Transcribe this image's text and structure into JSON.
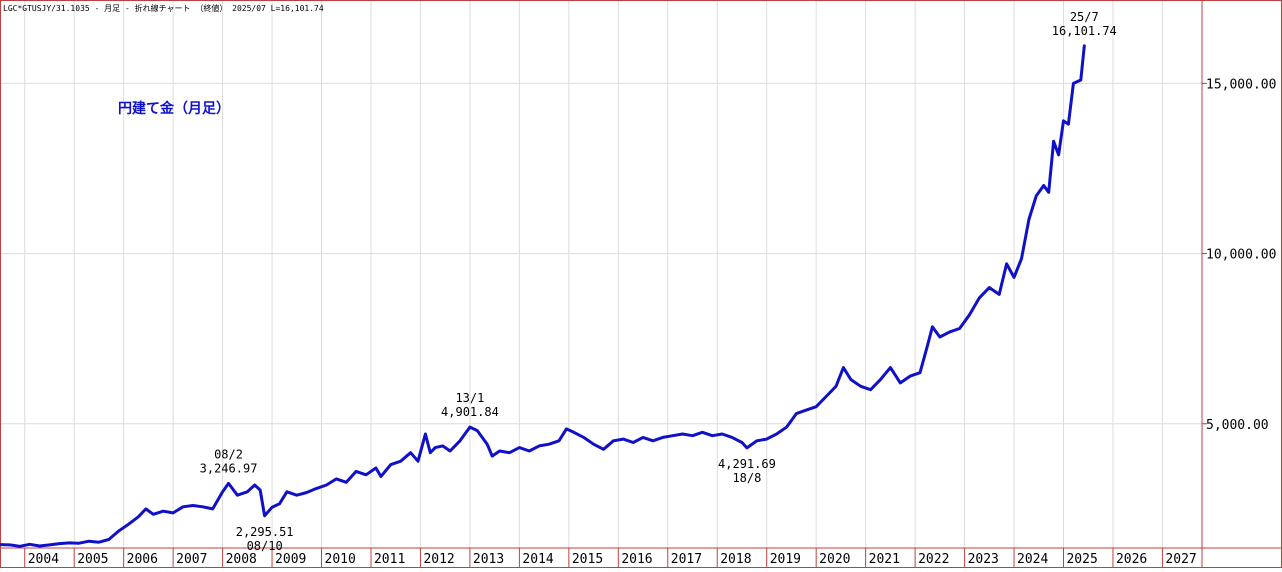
{
  "header": {
    "line": "LGC*GTUSJY/31.1035 - 月足 - 折れ線チャート （終値） 2025/07 L=16,101.74"
  },
  "chart_data": {
    "type": "line",
    "title": "円建て金（月足）",
    "xlabel": "",
    "ylabel": "",
    "xlim": [
      2003.5,
      2027.8
    ],
    "ylim": [
      1350,
      17450
    ],
    "y_ticks": [
      5000,
      10000,
      15000
    ],
    "y_tick_labels": [
      "5,000.00",
      "10,000.00",
      "15,000.00"
    ],
    "x_ticks": [
      2004,
      2005,
      2006,
      2007,
      2008,
      2009,
      2010,
      2011,
      2012,
      2013,
      2014,
      2015,
      2016,
      2017,
      2018,
      2019,
      2020,
      2021,
      2022,
      2023,
      2024,
      2025,
      2026,
      2027
    ],
    "x_tick_labels": [
      "2004",
      "2005",
      "2006",
      "2007",
      "2008",
      "2009",
      "2010",
      "2011",
      "2012",
      "2013",
      "2014",
      "2015",
      "2016",
      "2017",
      "2018",
      "2019",
      "2020",
      "2021",
      "2022",
      "2023",
      "2024",
      "2025",
      "2026",
      "2027"
    ],
    "grid": true,
    "legend": "none",
    "line_color": "#1010c8",
    "series": [
      {
        "points": [
          [
            2003.5,
            1450
          ],
          [
            2003.7,
            1440
          ],
          [
            2003.9,
            1400
          ],
          [
            2004.1,
            1460
          ],
          [
            2004.3,
            1410
          ],
          [
            2004.5,
            1440
          ],
          [
            2004.7,
            1480
          ],
          [
            2004.9,
            1500
          ],
          [
            2005.1,
            1490
          ],
          [
            2005.3,
            1550
          ],
          [
            2005.5,
            1520
          ],
          [
            2005.7,
            1600
          ],
          [
            2005.9,
            1850
          ],
          [
            2006.1,
            2050
          ],
          [
            2006.3,
            2270
          ],
          [
            2006.45,
            2500
          ],
          [
            2006.6,
            2340
          ],
          [
            2006.8,
            2430
          ],
          [
            2007.0,
            2380
          ],
          [
            2007.2,
            2560
          ],
          [
            2007.4,
            2600
          ],
          [
            2007.6,
            2560
          ],
          [
            2007.8,
            2500
          ],
          [
            2008.0,
            3000
          ],
          [
            2008.12,
            3246.97
          ],
          [
            2008.3,
            2900
          ],
          [
            2008.5,
            3000
          ],
          [
            2008.65,
            3200
          ],
          [
            2008.76,
            3050
          ],
          [
            2008.85,
            2295.51
          ],
          [
            2009.0,
            2550
          ],
          [
            2009.15,
            2650
          ],
          [
            2009.3,
            3000
          ],
          [
            2009.5,
            2900
          ],
          [
            2009.7,
            2980
          ],
          [
            2009.9,
            3100
          ],
          [
            2010.1,
            3200
          ],
          [
            2010.3,
            3380
          ],
          [
            2010.5,
            3280
          ],
          [
            2010.7,
            3600
          ],
          [
            2010.9,
            3500
          ],
          [
            2011.1,
            3700
          ],
          [
            2011.2,
            3450
          ],
          [
            2011.4,
            3800
          ],
          [
            2011.6,
            3900
          ],
          [
            2011.8,
            4150
          ],
          [
            2011.95,
            3900
          ],
          [
            2012.1,
            4700
          ],
          [
            2012.2,
            4150
          ],
          [
            2012.3,
            4300
          ],
          [
            2012.45,
            4350
          ],
          [
            2012.6,
            4200
          ],
          [
            2012.8,
            4500
          ],
          [
            2013.0,
            4901.84
          ],
          [
            2013.15,
            4800
          ],
          [
            2013.35,
            4400
          ],
          [
            2013.45,
            4050
          ],
          [
            2013.6,
            4200
          ],
          [
            2013.8,
            4150
          ],
          [
            2014.0,
            4300
          ],
          [
            2014.2,
            4200
          ],
          [
            2014.4,
            4350
          ],
          [
            2014.6,
            4400
          ],
          [
            2014.8,
            4500
          ],
          [
            2014.95,
            4850
          ],
          [
            2015.1,
            4750
          ],
          [
            2015.3,
            4600
          ],
          [
            2015.5,
            4400
          ],
          [
            2015.7,
            4250
          ],
          [
            2015.9,
            4500
          ],
          [
            2016.1,
            4550
          ],
          [
            2016.3,
            4450
          ],
          [
            2016.5,
            4600
          ],
          [
            2016.7,
            4500
          ],
          [
            2016.9,
            4600
          ],
          [
            2017.1,
            4650
          ],
          [
            2017.3,
            4700
          ],
          [
            2017.5,
            4650
          ],
          [
            2017.7,
            4750
          ],
          [
            2017.9,
            4650
          ],
          [
            2018.1,
            4700
          ],
          [
            2018.3,
            4600
          ],
          [
            2018.5,
            4450
          ],
          [
            2018.6,
            4291.69
          ],
          [
            2018.8,
            4500
          ],
          [
            2019.0,
            4550
          ],
          [
            2019.2,
            4700
          ],
          [
            2019.4,
            4900
          ],
          [
            2019.6,
            5300
          ],
          [
            2019.8,
            5400
          ],
          [
            2020.0,
            5500
          ],
          [
            2020.2,
            5800
          ],
          [
            2020.4,
            6100
          ],
          [
            2020.55,
            6650
          ],
          [
            2020.7,
            6300
          ],
          [
            2020.9,
            6100
          ],
          [
            2021.1,
            6000
          ],
          [
            2021.3,
            6300
          ],
          [
            2021.5,
            6650
          ],
          [
            2021.7,
            6200
          ],
          [
            2021.9,
            6400
          ],
          [
            2022.1,
            6500
          ],
          [
            2022.25,
            7300
          ],
          [
            2022.35,
            7850
          ],
          [
            2022.5,
            7550
          ],
          [
            2022.7,
            7700
          ],
          [
            2022.9,
            7800
          ],
          [
            2023.1,
            8200
          ],
          [
            2023.3,
            8700
          ],
          [
            2023.5,
            9000
          ],
          [
            2023.7,
            8800
          ],
          [
            2023.85,
            9700
          ],
          [
            2024.0,
            9300
          ],
          [
            2024.15,
            9850
          ],
          [
            2024.3,
            11000
          ],
          [
            2024.45,
            11700
          ],
          [
            2024.6,
            12000
          ],
          [
            2024.7,
            11800
          ],
          [
            2024.8,
            13300
          ],
          [
            2024.9,
            12900
          ],
          [
            2025.0,
            13900
          ],
          [
            2025.1,
            13800
          ],
          [
            2025.2,
            15000
          ],
          [
            2025.35,
            15100
          ],
          [
            2025.42,
            16101.74
          ]
        ]
      }
    ],
    "annotations": [
      {
        "x": 2008.12,
        "y": 3246.97,
        "date": "08/2",
        "value": "3,246.97",
        "position": "above"
      },
      {
        "x": 2008.85,
        "y": 2295.51,
        "date": "08/10",
        "value": "2,295.51",
        "position": "below"
      },
      {
        "x": 2013.0,
        "y": 4901.84,
        "date": "13/1",
        "value": "4,901.84",
        "position": "above"
      },
      {
        "x": 2018.6,
        "y": 4291.69,
        "date": "18/8",
        "value": "4,291.69",
        "position": "below"
      },
      {
        "x": 2025.42,
        "y": 16101.74,
        "date": "25/7",
        "value": "16,101.74",
        "position": "above"
      }
    ]
  }
}
